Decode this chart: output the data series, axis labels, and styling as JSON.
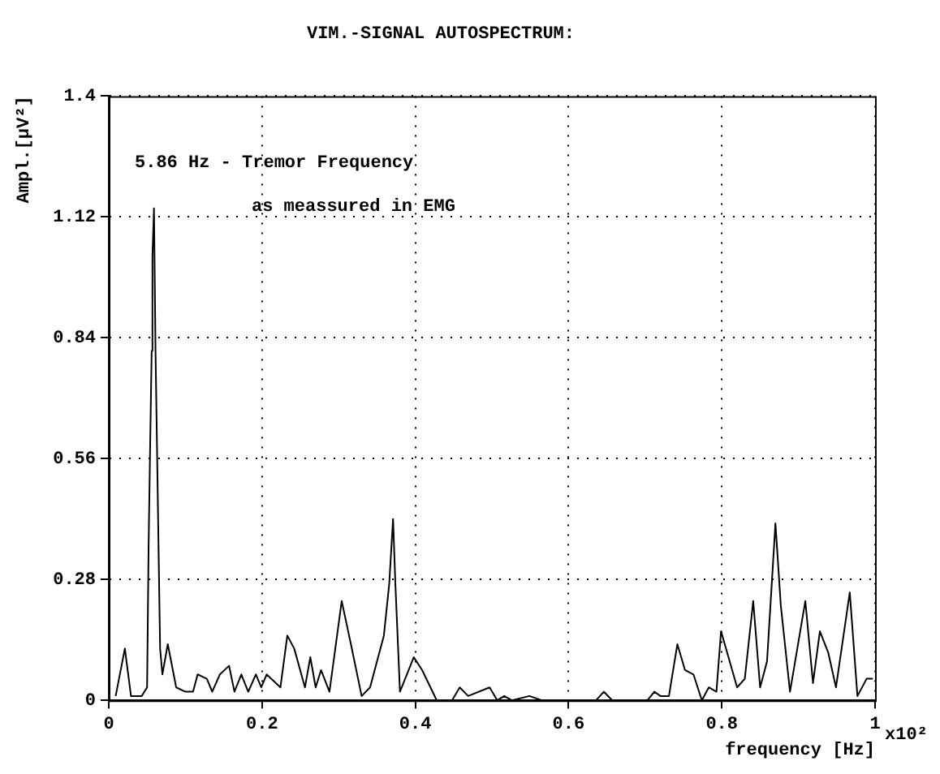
{
  "chart_data": {
    "type": "line",
    "title": "VIM.-SIGNAL AUTOSPECTRUM:",
    "xlabel": "frequency [Hz]",
    "ylabel": "Ampl.[µV²]",
    "annotations": [
      "5.86 Hz - Tremor Frequency",
      "as meassured in EMG",
      "x10²"
    ],
    "x": [
      0.009,
      0.021,
      0.029,
      0.043,
      0.05,
      0.052,
      0.054,
      0.056,
      0.057,
      0.059,
      0.061,
      0.063,
      0.067,
      0.07,
      0.077,
      0.088,
      0.1,
      0.11,
      0.116,
      0.128,
      0.135,
      0.145,
      0.157,
      0.164,
      0.173,
      0.182,
      0.192,
      0.199,
      0.206,
      0.224,
      0.233,
      0.242,
      0.256,
      0.263,
      0.27,
      0.277,
      0.288,
      0.304,
      0.316,
      0.33,
      0.341,
      0.359,
      0.366,
      0.371,
      0.374,
      0.38,
      0.398,
      0.409,
      0.428,
      0.448,
      0.458,
      0.469,
      0.497,
      0.507,
      0.516,
      0.526,
      0.549,
      0.565,
      0.636,
      0.646,
      0.657,
      0.685,
      0.703,
      0.712,
      0.72,
      0.731,
      0.742,
      0.752,
      0.763,
      0.774,
      0.783,
      0.793,
      0.799,
      0.82,
      0.83,
      0.841,
      0.85,
      0.859,
      0.87,
      0.877,
      0.889,
      0.909,
      0.919,
      0.928,
      0.939,
      0.949,
      0.967,
      0.977,
      0.989,
      0.997
    ],
    "series": [
      {
        "color": "#000000",
        "values": [
          0.01,
          0.12,
          0.01,
          0.01,
          0.03,
          0.36,
          0.59,
          0.81,
          1.03,
          1.14,
          0.81,
          0.58,
          0.12,
          0.06,
          0.13,
          0.03,
          0.02,
          0.02,
          0.06,
          0.05,
          0.02,
          0.06,
          0.08,
          0.02,
          0.06,
          0.02,
          0.06,
          0.03,
          0.06,
          0.03,
          0.15,
          0.12,
          0.03,
          0.1,
          0.03,
          0.07,
          0.02,
          0.23,
          0.13,
          0.01,
          0.03,
          0.15,
          0.27,
          0.42,
          0.27,
          0.02,
          0.1,
          0.07,
          0,
          0,
          0.03,
          0.01,
          0.03,
          0,
          0.01,
          0,
          0.01,
          0,
          0,
          0.02,
          0,
          0,
          0,
          0.02,
          0.01,
          0.01,
          0.13,
          0.07,
          0.06,
          0,
          0.03,
          0.02,
          0.16,
          0.03,
          0.05,
          0.23,
          0.03,
          0.09,
          0.41,
          0.22,
          0.02,
          0.23,
          0.04,
          0.16,
          0.11,
          0.03,
          0.25,
          0.01,
          0.05,
          0.05
        ]
      }
    ],
    "xlim": [
      0,
      1
    ],
    "xticks": [
      0,
      0.2,
      0.4,
      0.6,
      0.8,
      1
    ],
    "ylim": [
      0,
      1.4
    ],
    "yticks": [
      0,
      0.28,
      0.56,
      0.84,
      1.12,
      1.4
    ],
    "grid": true,
    "legend": false,
    "marker": "none",
    "line_style": "solid"
  }
}
